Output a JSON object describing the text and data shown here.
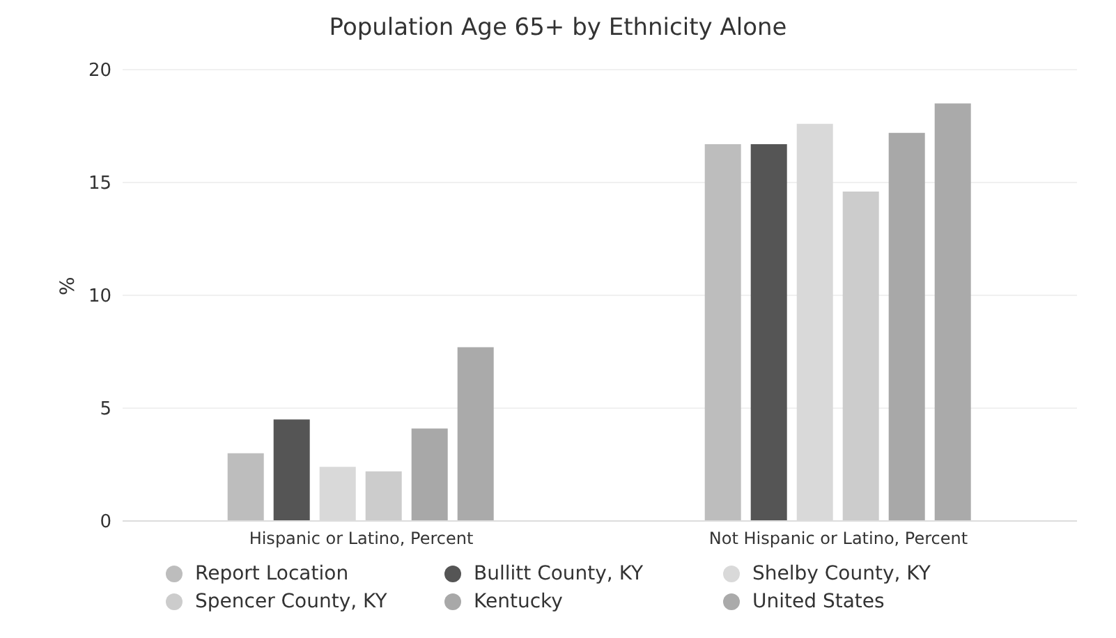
{
  "chart_data": {
    "type": "bar",
    "title": "Population Age 65+ by Ethnicity Alone",
    "ylabel": "%",
    "categories": [
      "Hispanic or Latino, Percent",
      "Not Hispanic or Latino, Percent"
    ],
    "series": [
      {
        "name": "Report Location",
        "color": "#bdbdbd",
        "values": [
          3.0,
          16.7
        ]
      },
      {
        "name": "Bullitt County, KY",
        "color": "#555555",
        "values": [
          4.5,
          16.7
        ]
      },
      {
        "name": "Shelby County, KY",
        "color": "#d9d9d9",
        "values": [
          2.4,
          17.6
        ]
      },
      {
        "name": "Spencer County, KY",
        "color": "#cccccc",
        "values": [
          2.2,
          14.6
        ]
      },
      {
        "name": "Kentucky",
        "color": "#a8a8a8",
        "values": [
          4.1,
          17.2
        ]
      },
      {
        "name": "United States",
        "color": "#aaaaaa",
        "values": [
          7.7,
          18.5
        ]
      }
    ],
    "ylim": [
      0,
      20
    ],
    "yticks": [
      0,
      5,
      10,
      15,
      20
    ],
    "grid": "y",
    "legend": "bottom"
  }
}
